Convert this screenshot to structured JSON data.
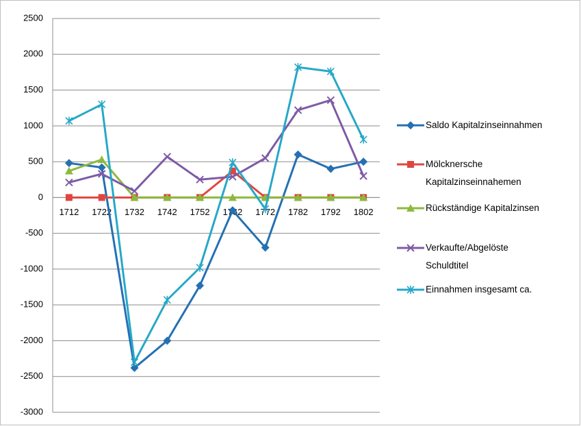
{
  "chart_data": {
    "type": "line",
    "categories": [
      "1712",
      "1722",
      "1732",
      "1742",
      "1752",
      "1762",
      "1772",
      "1782",
      "1792",
      "1802"
    ],
    "series": [
      {
        "name": "Saldo Kapitalzinseinnahmen",
        "color": "#2470b3",
        "marker": "diamond",
        "values": [
          480,
          420,
          -2380,
          -2000,
          -1230,
          -180,
          -700,
          600,
          400,
          500
        ]
      },
      {
        "name": "Mölcknersche Kapitalzinseinnahemen",
        "color": "#e0463f",
        "marker": "square",
        "values": [
          0,
          0,
          0,
          0,
          0,
          370,
          0,
          0,
          0,
          0
        ]
      },
      {
        "name": "Rückständige Kapitalzinsen",
        "color": "#8db93e",
        "marker": "triangle",
        "values": [
          370,
          530,
          0,
          0,
          0,
          0,
          0,
          0,
          0,
          0
        ]
      },
      {
        "name": "Verkaufte/Abgelöste Schuldtitel",
        "color": "#7d5ba6",
        "marker": "x",
        "values": [
          210,
          330,
          90,
          570,
          250,
          290,
          550,
          1220,
          1360,
          300
        ]
      },
      {
        "name": "Einnahmen insgesamt ca.",
        "color": "#26a8c8",
        "marker": "asterisk",
        "values": [
          1070,
          1300,
          -2300,
          -1430,
          -980,
          490,
          -160,
          1820,
          1760,
          810
        ]
      }
    ],
    "ylim": [
      -3000,
      2500
    ],
    "yticks": [
      -3000,
      -2500,
      -2000,
      -1500,
      -1000,
      -500,
      0,
      500,
      1000,
      1500,
      2000,
      2500
    ],
    "grid": true,
    "legend": "right"
  }
}
